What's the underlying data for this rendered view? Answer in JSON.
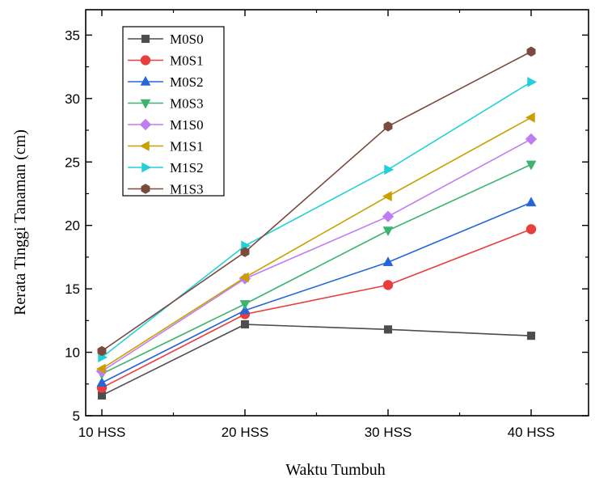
{
  "chart_data": {
    "type": "line",
    "categories": [
      "10 HSS",
      "20 HSS",
      "30 HSS",
      "40 HSS"
    ],
    "xlabel": "Waktu Tumbuh",
    "ylabel": "Rerata Tinggi Tanaman (cm)",
    "ylim": [
      5,
      37
    ],
    "yticks": [
      "5",
      "10",
      "15",
      "20",
      "25",
      "30",
      "35"
    ],
    "legend_position": "top-left",
    "grid": false,
    "series": [
      {
        "name": "M0S0",
        "color": "#4d4d4d",
        "marker": "square",
        "values": [
          6.6,
          12.2,
          11.8,
          11.3
        ]
      },
      {
        "name": "M0S1",
        "color": "#ea3e3e",
        "marker": "circle",
        "values": [
          7.2,
          13.0,
          15.3,
          19.7
        ]
      },
      {
        "name": "M0S2",
        "color": "#2566d8",
        "marker": "triangle-up",
        "values": [
          7.6,
          13.3,
          17.1,
          21.8
        ]
      },
      {
        "name": "M0S3",
        "color": "#3cb371",
        "marker": "triangle-down",
        "values": [
          8.3,
          13.8,
          19.6,
          24.8
        ]
      },
      {
        "name": "M1S0",
        "color": "#c07cf0",
        "marker": "diamond",
        "values": [
          8.5,
          15.8,
          20.7,
          26.8
        ]
      },
      {
        "name": "M1S1",
        "color": "#c9a000",
        "marker": "triangle-left",
        "values": [
          8.7,
          15.9,
          22.3,
          28.5
        ]
      },
      {
        "name": "M1S2",
        "color": "#22d1d8",
        "marker": "triangle-right",
        "values": [
          9.6,
          18.4,
          24.4,
          31.3
        ]
      },
      {
        "name": "M1S3",
        "color": "#7a4a3d",
        "marker": "hexagon",
        "values": [
          10.1,
          17.9,
          27.8,
          33.7
        ]
      }
    ]
  }
}
